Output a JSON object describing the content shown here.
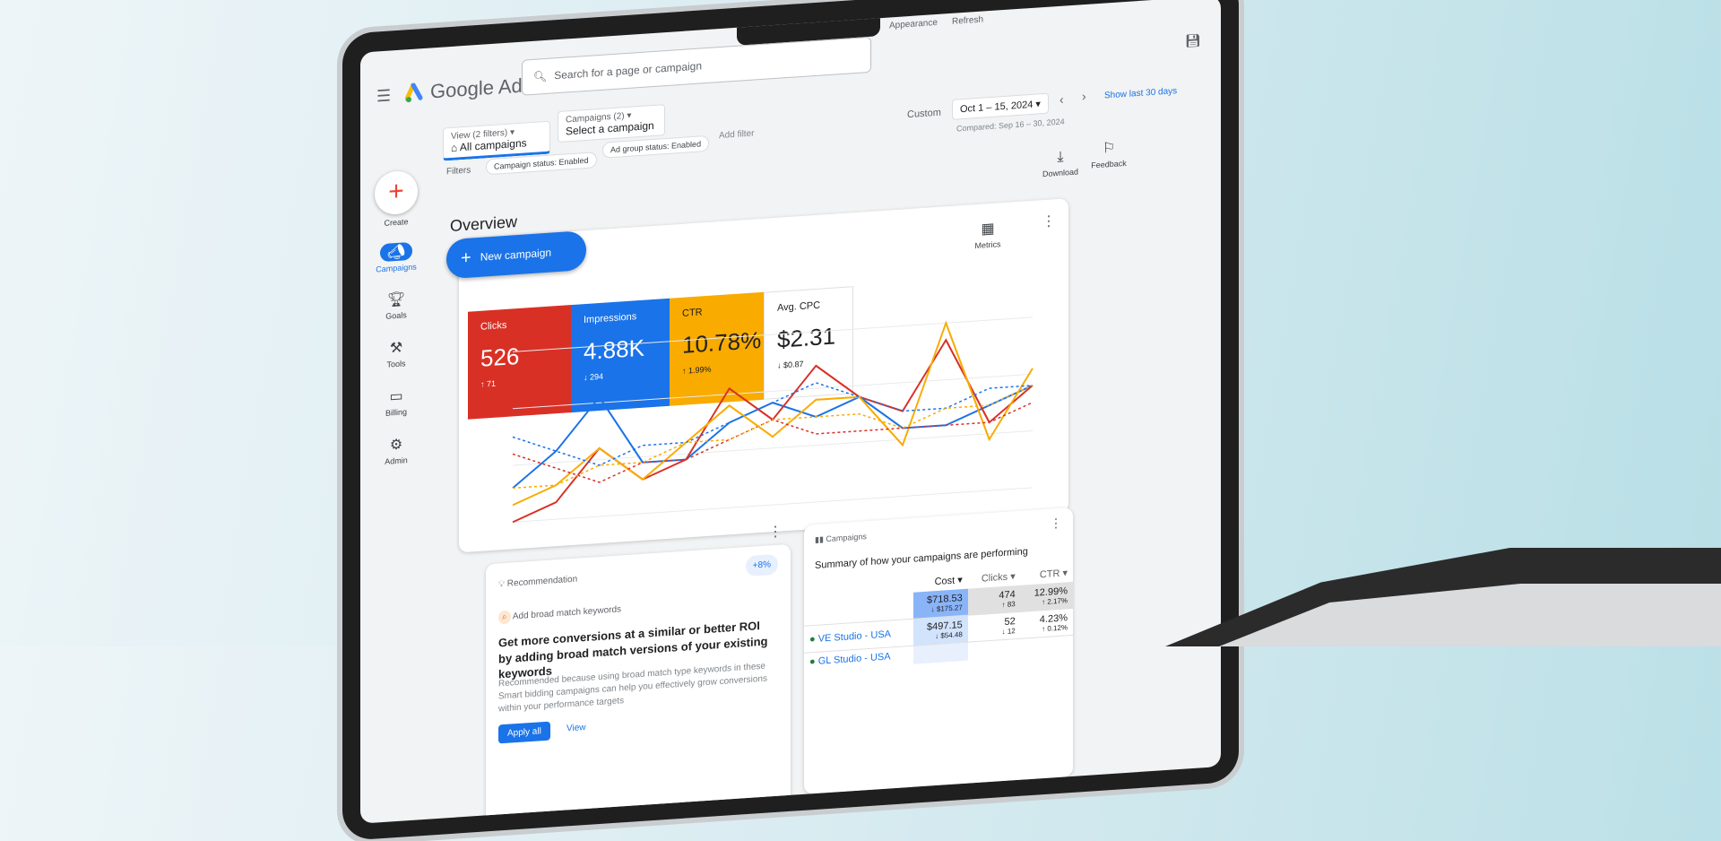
{
  "app": {
    "title": "Google Ads",
    "search_placeholder": "Search for a page or campaign",
    "top_links": [
      "Appearance",
      "Refresh"
    ]
  },
  "filters": {
    "view_label": "View (2 filters)",
    "view_value": "All campaigns",
    "campaigns_label": "Campaigns (2)",
    "campaigns_value": "Select a campaign",
    "filters_label": "Filters",
    "chips": [
      "Campaign status: Enabled",
      "Ad group status: Enabled"
    ],
    "add_filter": "Add filter"
  },
  "date": {
    "custom_label": "Custom",
    "range": "Oct 1 – 15, 2024",
    "compared": "Compared: Sep 16 – 30, 2024",
    "show_last": "Show last 30 days"
  },
  "actions": {
    "download": "Download",
    "feedback": "Feedback"
  },
  "sidebar": {
    "create": "Create",
    "items": [
      {
        "label": "Campaigns",
        "icon": "megaphone-icon",
        "active": true
      },
      {
        "label": "Goals",
        "icon": "trophy-icon"
      },
      {
        "label": "Tools",
        "icon": "tools-icon"
      },
      {
        "label": "Billing",
        "icon": "credit-card-icon"
      },
      {
        "label": "Admin",
        "icon": "gear-icon"
      }
    ]
  },
  "overview": {
    "title": "Overview",
    "new_campaign": "New campaign",
    "metrics_label": "Metrics",
    "tiles": [
      {
        "label": "Clicks",
        "value": "526",
        "delta": "↑ 71",
        "color": "#d93025"
      },
      {
        "label": "Impressions",
        "value": "4.88K",
        "delta": "↓ 294",
        "color": "#1a73e8"
      },
      {
        "label": "CTR",
        "value": "10.78%",
        "delta": "↑ 1.99%",
        "color": "#f9ab00"
      },
      {
        "label": "Avg. CPC",
        "value": "$2.31",
        "delta": "↓ $0.87",
        "color": "#ffffff"
      }
    ]
  },
  "chart_data": {
    "type": "line",
    "grid": true,
    "series": [
      {
        "color": "#1a73e8",
        "style": "solid",
        "values": [
          2,
          4,
          7,
          3,
          3,
          5,
          6,
          5,
          6,
          4,
          4,
          5,
          6
        ]
      },
      {
        "color": "#d93025",
        "style": "solid",
        "values": [
          0,
          1,
          4,
          2,
          3,
          7,
          5,
          8,
          6,
          5,
          9,
          4,
          6
        ]
      },
      {
        "color": "#f9ab00",
        "style": "solid",
        "values": [
          1,
          2,
          4,
          2,
          4,
          6,
          4,
          6,
          6,
          3,
          10,
          3,
          7
        ]
      },
      {
        "color": "#1a73e8",
        "style": "dotted",
        "values": [
          5,
          4,
          3,
          4,
          4,
          5,
          6,
          7,
          6,
          5,
          5,
          6,
          6
        ]
      },
      {
        "color": "#d93025",
        "style": "dotted",
        "values": [
          4,
          3,
          2,
          3,
          3,
          4,
          5,
          4,
          4,
          4,
          4,
          4,
          5
        ]
      },
      {
        "color": "#f9ab00",
        "style": "dotted",
        "values": [
          2,
          2,
          3,
          3,
          4,
          4,
          5,
          5,
          5,
          4,
          5,
          5,
          6
        ]
      }
    ]
  },
  "recommendation": {
    "title": "Recommendation",
    "badge": "+8%",
    "item": "Add broad match keywords",
    "headline": "Get more conversions at a similar or better ROI by adding broad match versions of your existing keywords",
    "body": "Recommended because using broad match type keywords in these Smart bidding campaigns can help you effectively grow conversions within your performance targets",
    "apply": "Apply all",
    "view": "View"
  },
  "campaigns": {
    "title": "Campaigns",
    "summary": "Summary of how your campaigns are performing",
    "columns": [
      "Cost",
      "Clicks",
      "CTR"
    ],
    "total": {
      "cost": "$718.53",
      "cost_delta": "↓ $175.27",
      "clicks": "474",
      "clicks_delta": "↑ 83",
      "ctr": "12.99%",
      "ctr_delta": "↑ 2.17%"
    },
    "rows": [
      {
        "name": "VE Studio - USA",
        "cost": "$497.15",
        "cost_delta": "↓ $54.48",
        "clicks": "52",
        "clicks_delta": "↓ 12",
        "ctr": "4.23%",
        "ctr_delta": "↑ 0.12%"
      },
      {
        "name": "GL Studio - USA"
      }
    ]
  }
}
